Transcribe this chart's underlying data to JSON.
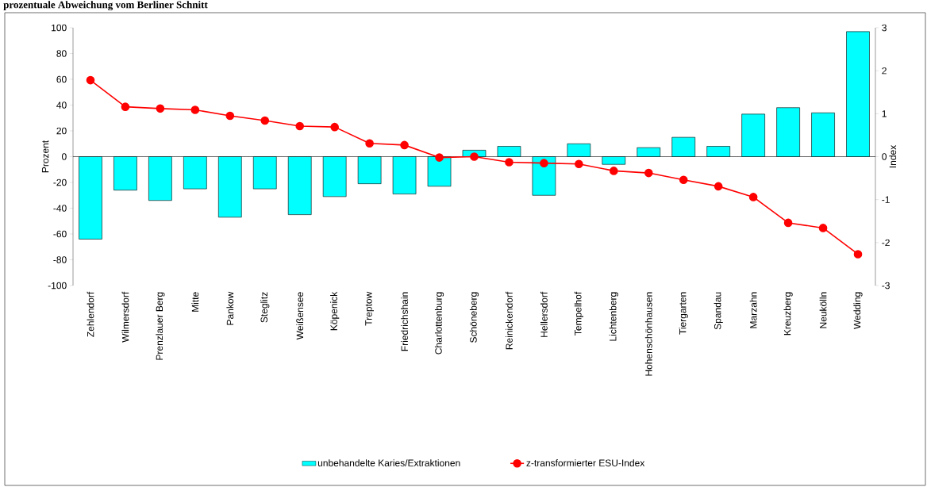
{
  "chart_data": {
    "type": "bar",
    "title": "prozentuale Abweichung vom Berliner Schnitt",
    "categories": [
      "Zehlendorf",
      "Wilmersdorf",
      "Prenzlauer Berg",
      "Mitte",
      "Pankow",
      "Steglitz",
      "Weißensee",
      "Köpenick",
      "Treptow",
      "Friedrichshain",
      "Charlottenburg",
      "Schöneberg",
      "Reinickendorf",
      "Hellersdorf",
      "Tempelhof",
      "Lichtenberg",
      "Hohenschönhausen",
      "Tiergarten",
      "Spandau",
      "Marzahn",
      "Kreuzberg",
      "Neukölln",
      "Wedding"
    ],
    "ylabel": "Prozent",
    "y2label": "Index",
    "ylim": [
      -100,
      100
    ],
    "yticks": [
      -100,
      -80,
      -60,
      -40,
      -20,
      0,
      20,
      40,
      60,
      80,
      100
    ],
    "y2lim": [
      -3,
      3
    ],
    "y2ticks": [
      -3,
      -2,
      -1,
      0,
      1,
      2,
      3
    ],
    "legend": "bottom",
    "marker": "circle",
    "series": [
      {
        "name": "unbehandelte Karies/Extraktionen",
        "color": "#00ffff",
        "values": [
          -64,
          -26,
          -34,
          -25,
          -47,
          -25,
          -45,
          -31,
          -21,
          -29,
          -23,
          5,
          8,
          -30,
          10,
          -6,
          7,
          15,
          8,
          33,
          38,
          34,
          97
        ]
      },
      {
        "name": "z-transformierter ESU-Index",
        "type": "line",
        "axis": "y2",
        "color": "#ff0000",
        "values": [
          1.78,
          1.16,
          1.12,
          1.09,
          0.95,
          0.84,
          0.71,
          0.69,
          0.31,
          0.27,
          -0.02,
          0.0,
          -0.13,
          -0.15,
          -0.17,
          -0.33,
          -0.38,
          -0.54,
          -0.69,
          -0.94,
          -1.54,
          -1.66,
          -2.27
        ]
      }
    ]
  }
}
